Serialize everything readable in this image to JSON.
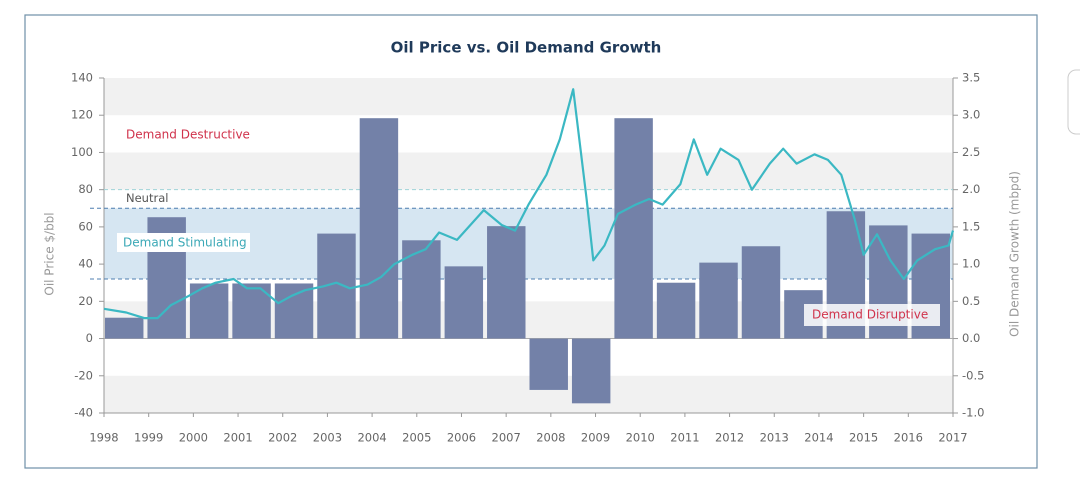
{
  "chart_data": {
    "type": "combo",
    "title": "Oil Price vs. Oil Demand Growth",
    "ylabel": "Oil Price $/bbl",
    "y2label": "Oil Demand Growth (mbpd)",
    "xlim": [
      1998,
      2017
    ],
    "xticks": [
      1998,
      1999,
      2000,
      2001,
      2002,
      2003,
      2004,
      2005,
      2006,
      2007,
      2008,
      2009,
      2010,
      2011,
      2012,
      2013,
      2014,
      2015,
      2016,
      2017
    ],
    "ylim": [
      -40,
      140
    ],
    "yticks": [
      -40,
      -20,
      0,
      20,
      40,
      60,
      80,
      100,
      120,
      140
    ],
    "y2lim": [
      -1.0,
      3.5
    ],
    "y2ticks": [
      {
        "value": -1.0,
        "label": "-1.0"
      },
      -0.5,
      {
        "value": 0.0,
        "label": "0.0"
      },
      0.5,
      {
        "value": 1.0,
        "label": "1.0"
      },
      1.5,
      {
        "value": 2.0,
        "label": "2.0"
      },
      2.5,
      {
        "value": 3.0,
        "label": "3.0"
      },
      3.5
    ],
    "grid": true,
    "series": [
      {
        "type": "bar",
        "axis": "y2",
        "color": "#7381a8",
        "values": [
          0.28,
          1.63,
          0.74,
          0.74,
          0.74,
          1.41,
          2.96,
          1.32,
          0.97,
          1.51,
          -0.69,
          -0.87,
          2.96,
          0.75,
          1.02,
          1.24,
          0.65,
          1.71,
          1.52,
          1.41
        ]
      },
      {
        "type": "line",
        "color": "#3bb8c3",
        "x": [
          1998.0,
          1998.5,
          1998.9,
          1999.2,
          1999.5,
          1999.9,
          2000.2,
          2000.5,
          2000.9,
          2001.2,
          2001.5,
          2001.9,
          2002.2,
          2002.5,
          2002.9,
          2003.2,
          2003.5,
          2003.9,
          2004.2,
          2004.5,
          2004.9,
          2005.2,
          2005.5,
          2005.9,
          2006.2,
          2006.5,
          2006.9,
          2007.2,
          2007.5,
          2007.9,
          2008.2,
          2008.5,
          2008.8,
          2008.95,
          2009.2,
          2009.5,
          2009.9,
          2010.2,
          2010.5,
          2010.9,
          2011.2,
          2011.5,
          2011.8,
          2012.2,
          2012.5,
          2012.9,
          2013.2,
          2013.5,
          2013.9,
          2014.2,
          2014.5,
          2014.8,
          2015.0,
          2015.3,
          2015.6,
          2015.9,
          2016.2,
          2016.6,
          2016.9,
          2017.0
        ],
        "values": [
          16,
          14,
          11,
          11,
          18,
          23,
          27,
          30,
          32,
          27,
          27,
          19,
          23,
          26,
          28,
          30,
          27,
          29,
          33,
          40,
          45,
          48,
          57,
          53,
          61,
          69,
          61,
          58,
          72,
          88,
          107,
          134,
          75,
          42,
          50,
          67,
          72,
          75,
          72,
          83,
          107,
          88,
          102,
          96,
          80,
          94,
          102,
          94,
          99,
          96,
          88,
          64,
          45,
          56,
          42,
          32,
          42,
          48,
          50,
          58
        ]
      }
    ],
    "reference_lines": [
      {
        "label": "Neutral",
        "value": 80,
        "color": "#9fd3d8"
      }
    ],
    "shaded_band": {
      "label": "Demand Stimulating",
      "range": [
        32,
        70
      ],
      "color": "#d6e6f2"
    },
    "annotations": [
      {
        "text": "Demand Destructive",
        "color": "#d0324b"
      },
      {
        "text": "Demand Disruptive",
        "color": "#d0324b"
      }
    ]
  }
}
